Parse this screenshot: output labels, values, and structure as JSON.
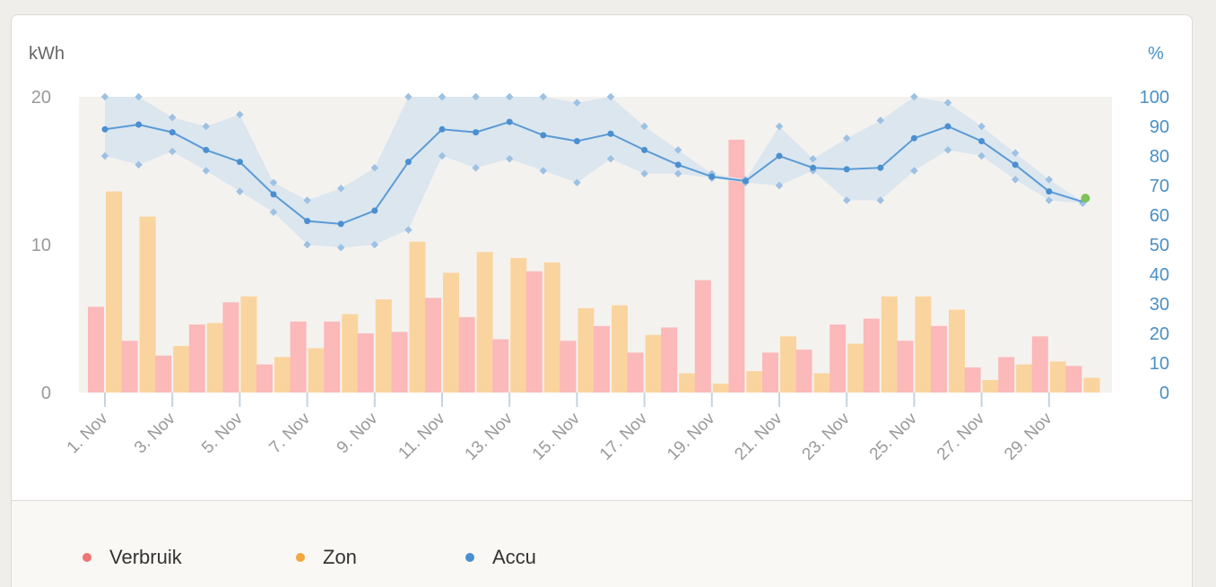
{
  "chart_data": {
    "type": "bar+line",
    "left_axis": {
      "label": "kWh",
      "ticks": [
        0,
        10,
        20
      ],
      "range": [
        0,
        20
      ]
    },
    "right_axis": {
      "label": "%",
      "ticks": [
        0,
        10,
        20,
        30,
        40,
        50,
        60,
        70,
        80,
        90,
        100
      ],
      "range": [
        0,
        100
      ]
    },
    "x_tick_labels": [
      "1. Nov",
      "3. Nov",
      "5. Nov",
      "7. Nov",
      "9. Nov",
      "11. Nov",
      "13. Nov",
      "15. Nov",
      "17. Nov",
      "19. Nov",
      "21. Nov",
      "23. Nov",
      "25. Nov",
      "27. Nov",
      "29. Nov"
    ],
    "days": [
      1,
      2,
      3,
      4,
      5,
      6,
      7,
      8,
      9,
      10,
      11,
      12,
      13,
      14,
      15,
      16,
      17,
      18,
      19,
      20,
      21,
      22,
      23,
      24,
      25,
      26,
      27,
      28,
      29,
      30
    ],
    "series": [
      {
        "name": "Verbruik",
        "type": "bar",
        "axis": "left",
        "color": "#f07474",
        "values": [
          5.8,
          3.5,
          2.5,
          4.6,
          6.1,
          1.9,
          4.8,
          4.8,
          4.0,
          4.1,
          6.4,
          5.1,
          3.6,
          8.2,
          3.5,
          4.5,
          2.7,
          4.4,
          7.6,
          17.1,
          2.7,
          2.9,
          4.6,
          5.0,
          3.5,
          4.5,
          1.7,
          2.4,
          3.8,
          1.8
        ]
      },
      {
        "name": "Zon",
        "type": "bar",
        "axis": "left",
        "color": "#f2a83e",
        "values": [
          13.6,
          11.9,
          3.15,
          4.7,
          6.5,
          2.4,
          3.0,
          5.3,
          6.3,
          10.2,
          8.1,
          9.5,
          9.1,
          8.8,
          5.7,
          5.9,
          3.9,
          1.3,
          0.6,
          1.45,
          3.8,
          1.3,
          3.3,
          6.5,
          6.5,
          5.6,
          0.85,
          1.9,
          2.1,
          1.0
        ]
      },
      {
        "name": "Accu",
        "type": "line",
        "axis": "right",
        "color": "#4a8fd0",
        "values": [
          89,
          90.6,
          88,
          82,
          78,
          67,
          58,
          57,
          61.5,
          78,
          89,
          88,
          91.5,
          87,
          85,
          87.5,
          82,
          77,
          73,
          71.5,
          80,
          76,
          75.5,
          76,
          86,
          90,
          85,
          77,
          68,
          64.5
        ],
        "min": [
          80,
          77,
          81.5,
          75,
          68,
          61,
          50,
          49,
          50,
          55,
          80,
          76,
          79,
          75,
          71,
          79,
          74,
          74,
          72.5,
          71,
          70,
          75,
          65,
          65,
          75,
          82,
          80,
          72,
          65,
          64
        ],
        "max": [
          100,
          100,
          93,
          90,
          94,
          71,
          65,
          69,
          76,
          100,
          100,
          100,
          100,
          100,
          98,
          100,
          90,
          82,
          74,
          72,
          90,
          79,
          86,
          92,
          100,
          98,
          90,
          81,
          72,
          64.5
        ]
      }
    ]
  },
  "legend": [
    {
      "label": "Verbruik",
      "color": "#f07474"
    },
    {
      "label": "Zon",
      "color": "#f2a83e"
    },
    {
      "label": "Accu",
      "color": "#4a8fd0"
    }
  ]
}
